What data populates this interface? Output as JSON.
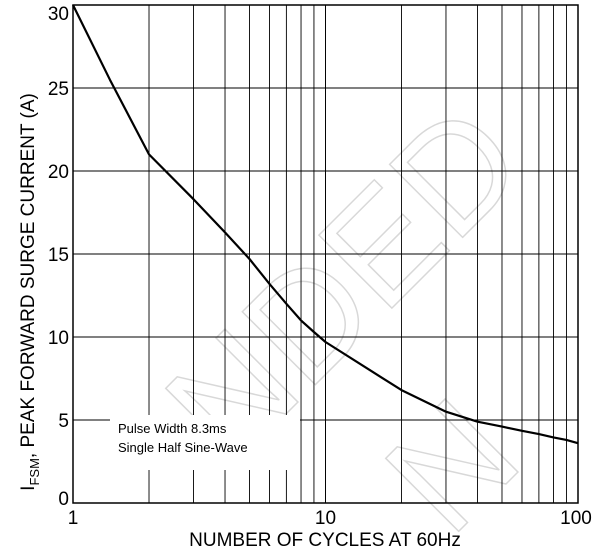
{
  "chart_data": {
    "type": "line",
    "xlabel": "NUMBER OF CYCLES AT 60Hz",
    "ylabel_main": "I",
    "ylabel_sub": "FSM",
    "ylabel_rest": ", PEAK FORWARD SURGE CURRENT (A)",
    "x_scale": "log",
    "xlim": [
      1,
      100
    ],
    "ylim": [
      0,
      30
    ],
    "x_ticks": [
      {
        "value": 1,
        "label": "1"
      },
      {
        "value": 10,
        "label": "10"
      },
      {
        "value": 100,
        "label": "100"
      }
    ],
    "y_ticks": [
      {
        "value": 0,
        "label": "0"
      },
      {
        "value": 5,
        "label": "5"
      },
      {
        "value": 10,
        "label": "10"
      },
      {
        "value": 15,
        "label": "15"
      },
      {
        "value": 20,
        "label": "20"
      },
      {
        "value": 25,
        "label": "25"
      },
      {
        "value": 30,
        "label": "30"
      }
    ],
    "grid": true,
    "series": [
      {
        "x": [
          1,
          1.4,
          2,
          3,
          4,
          5,
          6,
          7,
          8,
          9,
          10,
          15,
          20,
          30,
          40,
          50,
          60,
          70,
          80,
          90,
          100
        ],
        "y": [
          30,
          25.5,
          21,
          18.3,
          16.3,
          14.7,
          13.2,
          12,
          11,
          10.3,
          9.7,
          8,
          6.8,
          5.5,
          4.9,
          4.6,
          4.35,
          4.15,
          3.95,
          3.8,
          3.6
        ]
      }
    ],
    "annotations": [
      "Pulse Width 8.3ms",
      "Single Half Sine-Wave"
    ],
    "watermark": "NDED",
    "watermark2": "N"
  }
}
